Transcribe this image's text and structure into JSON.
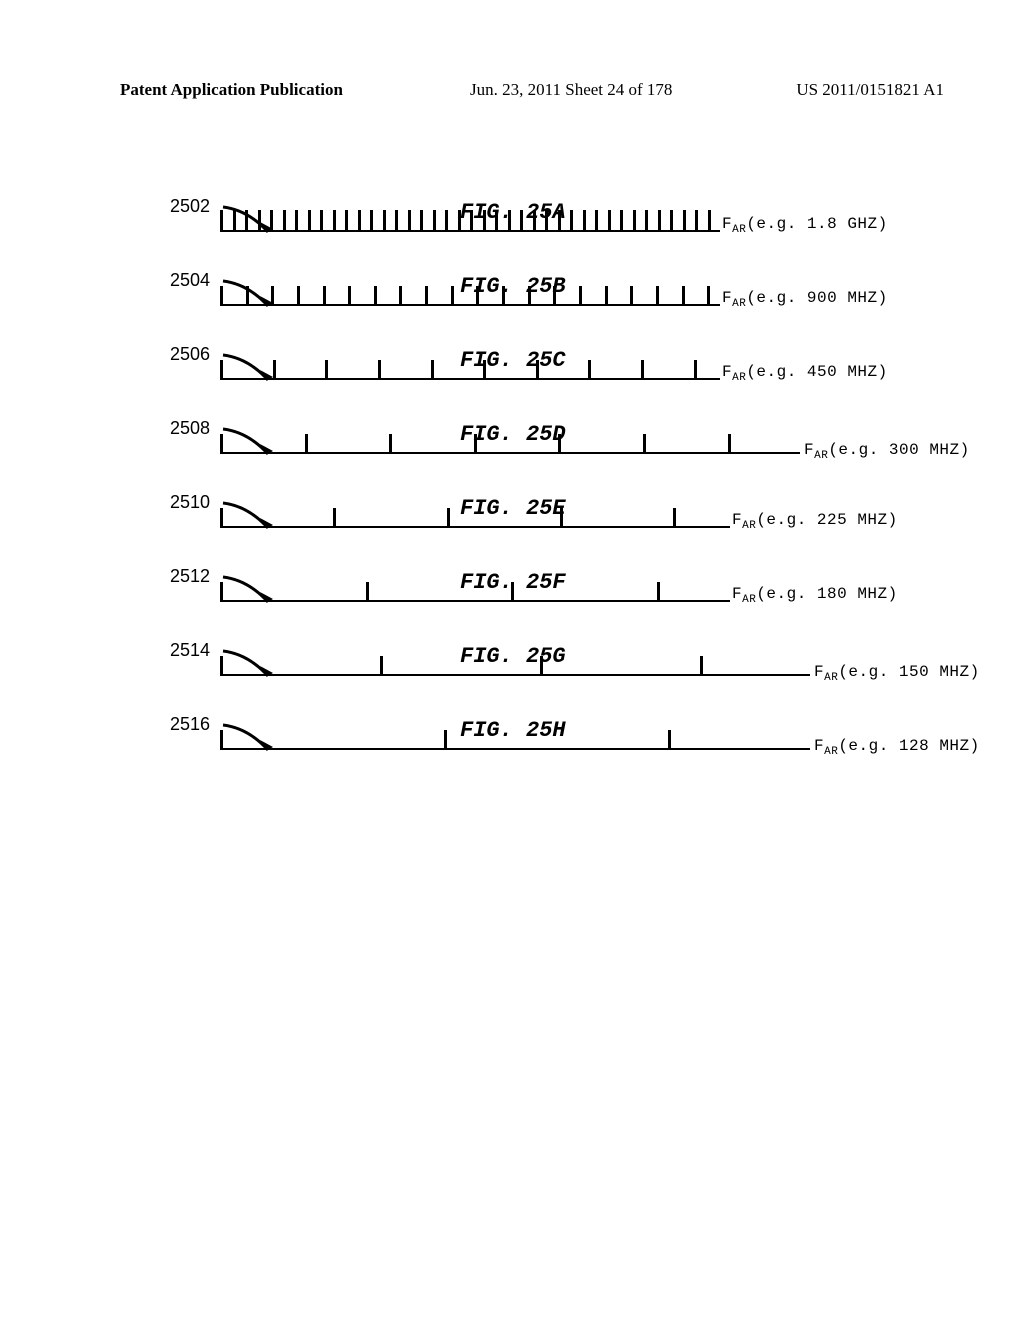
{
  "header": {
    "left": "Patent Application Publication",
    "mid": "Jun. 23, 2011  Sheet 24 of 178",
    "right": "US 2011/0151821 A1"
  },
  "figures": [
    {
      "ref": "2502",
      "title": "FIG. 25A",
      "freq_text": "(e.g. 1.8 GHZ)",
      "ticks": 40,
      "tick_h": 22,
      "line_w": 500,
      "leader": false
    },
    {
      "ref": "2504",
      "title": "FIG. 25B",
      "freq_text": "(e.g. 900 MHZ)",
      "ticks": 20,
      "tick_h": 20,
      "line_w": 500,
      "leader": false
    },
    {
      "ref": "2506",
      "title": "FIG. 25C",
      "freq_text": "(e.g. 450 MHZ)",
      "ticks": 10,
      "tick_h": 20,
      "line_w": 500,
      "leader": false
    },
    {
      "ref": "2508",
      "title": "FIG. 25D",
      "freq_text": "(e.g. 300 MHZ)",
      "ticks": 7,
      "tick_h": 20,
      "line_w": 550,
      "leader": true,
      "leader_len": 30
    },
    {
      "ref": "2510",
      "title": "FIG. 25E",
      "freq_text": "(e.g. 225 MHZ)",
      "ticks": 5,
      "tick_h": 20,
      "line_w": 510,
      "leader": false
    },
    {
      "ref": "2512",
      "title": "FIG. 25F",
      "freq_text": "(e.g. 180 MHZ)",
      "ticks": 4,
      "tick_h": 20,
      "line_w": 510,
      "leader": false
    },
    {
      "ref": "2514",
      "title": "FIG. 25G",
      "freq_text": "(e.g. 150 MHZ)",
      "ticks": 4,
      "tick_h": 20,
      "line_w": 560,
      "leader": true,
      "leader_len": 30
    },
    {
      "ref": "2516",
      "title": "FIG. 25H",
      "freq_text": "(e.g. 128 MHZ)",
      "ticks": 3,
      "tick_h": 20,
      "line_w": 560,
      "leader": true,
      "leader_len": 30
    }
  ],
  "style": {
    "f_label": "F",
    "sub_label": "AR",
    "tick_color": "#000000",
    "bg_color": "#ffffff"
  }
}
